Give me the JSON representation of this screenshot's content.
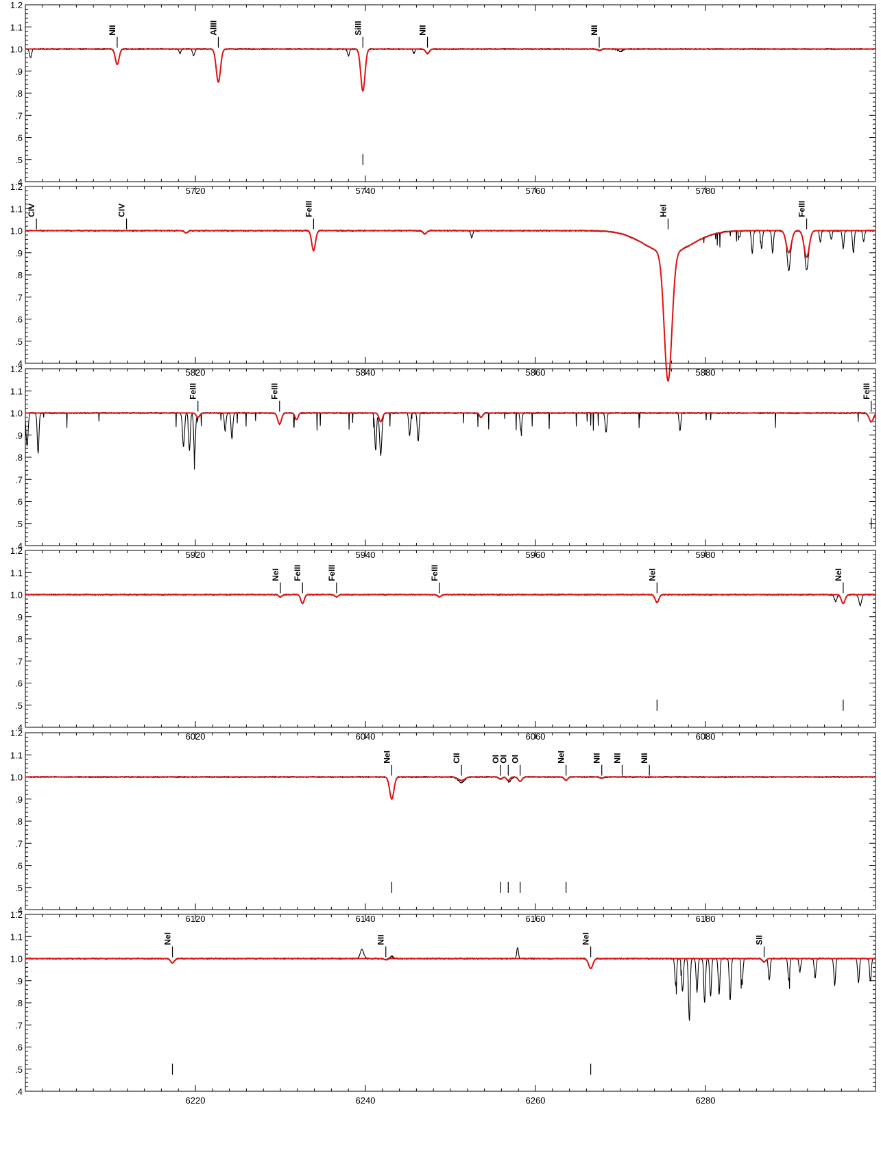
{
  "colors": {
    "observed": "#000000",
    "model": "#e01010",
    "axes": "#000000"
  },
  "chart_data": [
    {
      "type": "line",
      "xlim": [
        5700,
        5800
      ],
      "ylim": [
        0.4,
        1.2
      ],
      "xticks": [
        5720,
        5740,
        5760,
        5780
      ],
      "yticks": [
        0.4,
        0.5,
        0.6,
        0.7,
        0.8,
        0.9,
        1.0,
        1.1,
        1.2
      ],
      "ytick_labels": [
        ".4",
        ".5",
        ".6",
        ".7",
        ".8",
        ".9",
        "1.0",
        "1.1",
        "1.2"
      ],
      "line_ids": [
        {
          "x": 5710.8,
          "label": "NII"
        },
        {
          "x": 5722.7,
          "label": "AlIII"
        },
        {
          "x": 5739.7,
          "label": "SiIII"
        },
        {
          "x": 5747.3,
          "label": "NII"
        },
        {
          "x": 5767.5,
          "label": "NII"
        }
      ],
      "markers": [
        5739.7
      ],
      "model_lines": [
        {
          "x": 5710.8,
          "depth": 0.07,
          "width": 0.22
        },
        {
          "x": 5722.7,
          "depth": 0.15,
          "width": 0.25
        },
        {
          "x": 5739.7,
          "depth": 0.19,
          "width": 0.25
        },
        {
          "x": 5747.3,
          "depth": 0.02,
          "width": 0.22
        },
        {
          "x": 5767.5,
          "depth": 0.006,
          "width": 0.2
        }
      ],
      "extra_obs_lines": [
        {
          "x": 5700.6,
          "depth": 0.04,
          "width": 0.12
        },
        {
          "x": 5718.2,
          "depth": 0.02,
          "width": 0.1
        },
        {
          "x": 5719.8,
          "depth": 0.03,
          "width": 0.12
        },
        {
          "x": 5738.0,
          "depth": 0.03,
          "width": 0.12
        },
        {
          "x": 5745.7,
          "depth": 0.02,
          "width": 0.1
        },
        {
          "x": 5770.0,
          "depth": 0.01,
          "width": 0.3
        }
      ],
      "broad": []
    },
    {
      "type": "line",
      "xlim": [
        5800,
        5900
      ],
      "ylim": [
        0.4,
        1.2
      ],
      "xticks": [
        5820,
        5840,
        5860,
        5880
      ],
      "yticks": [
        0.4,
        0.5,
        0.6,
        0.7,
        0.8,
        0.9,
        1.0,
        1.1,
        1.2
      ],
      "ytick_labels": [
        ".4",
        ".5",
        ".6",
        ".7",
        ".8",
        ".9",
        "1.0",
        "1.1",
        "1.2"
      ],
      "line_ids": [
        {
          "x": 5801.3,
          "label": "CIV"
        },
        {
          "x": 5811.9,
          "label": "CIV"
        },
        {
          "x": 5833.9,
          "label": "FeIII"
        },
        {
          "x": 5875.6,
          "label": "HeI"
        },
        {
          "x": 5891.9,
          "label": "FeIII"
        }
      ],
      "markers": [],
      "model_lines": [
        {
          "x": 5818.9,
          "depth": 0.01,
          "width": 0.2
        },
        {
          "x": 5833.9,
          "depth": 0.09,
          "width": 0.22
        },
        {
          "x": 5847.0,
          "depth": 0.015,
          "width": 0.2
        },
        {
          "x": 5889.8,
          "depth": 0.1,
          "width": 0.3
        },
        {
          "x": 5891.9,
          "depth": 0.12,
          "width": 0.3
        }
      ],
      "extra_obs_lines": [
        {
          "x": 5852.5,
          "depth": 0.03,
          "width": 0.12
        },
        {
          "x": 5884.0,
          "depth": 0.03,
          "width": 0.1
        },
        {
          "x": 5885.5,
          "depth": 0.1,
          "width": 0.1
        },
        {
          "x": 5886.6,
          "depth": 0.08,
          "width": 0.1
        },
        {
          "x": 5887.9,
          "depth": 0.1,
          "width": 0.1
        },
        {
          "x": 5889.8,
          "depth": 0.08,
          "width": 0.15
        },
        {
          "x": 5891.9,
          "depth": 0.06,
          "width": 0.15
        },
        {
          "x": 5893.5,
          "depth": 0.05,
          "width": 0.1
        },
        {
          "x": 5894.8,
          "depth": 0.04,
          "width": 0.1
        },
        {
          "x": 5896.2,
          "depth": 0.08,
          "width": 0.1
        },
        {
          "x": 5897.4,
          "depth": 0.1,
          "width": 0.1
        },
        {
          "x": 5898.6,
          "depth": 0.05,
          "width": 0.1
        }
      ],
      "broad": [
        {
          "x": 5875.6,
          "depth": 0.58,
          "width": 0.45,
          "wing": 0.1,
          "wing_width": 2.8
        }
      ],
      "telluric_region": [
        5878,
        5900
      ]
    },
    {
      "type": "line",
      "xlim": [
        5900,
        6000
      ],
      "ylim": [
        0.4,
        1.2
      ],
      "xticks": [
        5920,
        5940,
        5960,
        5980
      ],
      "yticks": [
        0.4,
        0.5,
        0.6,
        0.7,
        0.8,
        0.9,
        1.0,
        1.1,
        1.2
      ],
      "ytick_labels": [
        ".4",
        ".5",
        ".6",
        ".7",
        ".8",
        ".9",
        "1.0",
        "1.1",
        "1.2"
      ],
      "line_ids": [
        {
          "x": 5920.3,
          "label": "FeIII"
        },
        {
          "x": 5929.9,
          "label": "FeIII"
        },
        {
          "x": 5999.5,
          "label": "FeIII"
        }
      ],
      "markers": [
        5999.5
      ],
      "model_lines": [
        {
          "x": 5920.3,
          "depth": 0.02,
          "width": 0.2
        },
        {
          "x": 5929.9,
          "depth": 0.05,
          "width": 0.22
        },
        {
          "x": 5931.9,
          "depth": 0.03,
          "width": 0.18
        },
        {
          "x": 5941.8,
          "depth": 0.04,
          "width": 0.2
        },
        {
          "x": 5953.6,
          "depth": 0.02,
          "width": 0.18
        },
        {
          "x": 5999.5,
          "depth": 0.04,
          "width": 0.25
        }
      ],
      "extra_obs_lines": [
        {
          "x": 5900.2,
          "depth": 0.15,
          "width": 0.12
        },
        {
          "x": 5901.5,
          "depth": 0.18,
          "width": 0.1
        },
        {
          "x": 5918.6,
          "depth": 0.15,
          "width": 0.12
        },
        {
          "x": 5919.3,
          "depth": 0.17,
          "width": 0.1
        },
        {
          "x": 5919.9,
          "depth": 0.19,
          "width": 0.1
        },
        {
          "x": 5923.5,
          "depth": 0.08,
          "width": 0.1
        },
        {
          "x": 5924.3,
          "depth": 0.12,
          "width": 0.1
        },
        {
          "x": 5941.2,
          "depth": 0.17,
          "width": 0.1
        },
        {
          "x": 5941.8,
          "depth": 0.15,
          "width": 0.12
        },
        {
          "x": 5945.2,
          "depth": 0.1,
          "width": 0.1
        },
        {
          "x": 5946.2,
          "depth": 0.13,
          "width": 0.1
        },
        {
          "x": 5958.3,
          "depth": 0.08,
          "width": 0.1
        },
        {
          "x": 5968.3,
          "depth": 0.09,
          "width": 0.1
        },
        {
          "x": 5977.0,
          "depth": 0.08,
          "width": 0.1
        }
      ],
      "broad": [],
      "telluric_region": [
        5900,
        6000
      ]
    },
    {
      "type": "line",
      "xlim": [
        6000,
        6100
      ],
      "ylim": [
        0.4,
        1.2
      ],
      "xticks": [
        6020,
        6040,
        6060,
        6080
      ],
      "yticks": [
        0.4,
        0.5,
        0.6,
        0.7,
        0.8,
        0.9,
        1.0,
        1.1,
        1.2
      ],
      "ytick_labels": [
        ".4",
        ".5",
        ".6",
        ".7",
        ".8",
        ".9",
        "1.0",
        "1.1",
        "1.2"
      ],
      "line_ids": [
        {
          "x": 6030.0,
          "label": "NeI"
        },
        {
          "x": 6032.6,
          "label": "FeIII"
        },
        {
          "x": 6036.6,
          "label": "FeIII"
        },
        {
          "x": 6048.7,
          "label": "FeIII"
        },
        {
          "x": 6074.3,
          "label": "NeI"
        },
        {
          "x": 6096.2,
          "label": "NeI"
        }
      ],
      "markers": [
        6074.3,
        6096.2
      ],
      "model_lines": [
        {
          "x": 6030.0,
          "depth": 0.01,
          "width": 0.2
        },
        {
          "x": 6032.6,
          "depth": 0.04,
          "width": 0.2
        },
        {
          "x": 6036.6,
          "depth": 0.01,
          "width": 0.2
        },
        {
          "x": 6048.7,
          "depth": 0.01,
          "width": 0.2
        },
        {
          "x": 6074.3,
          "depth": 0.035,
          "width": 0.22
        },
        {
          "x": 6096.2,
          "depth": 0.04,
          "width": 0.22
        }
      ],
      "extra_obs_lines": [
        {
          "x": 6095.3,
          "depth": 0.03,
          "width": 0.15
        },
        {
          "x": 6098.2,
          "depth": 0.05,
          "width": 0.15
        }
      ],
      "broad": []
    },
    {
      "type": "line",
      "xlim": [
        6100,
        6200
      ],
      "ylim": [
        0.4,
        1.2
      ],
      "xticks": [
        6120,
        6140,
        6160,
        6180
      ],
      "yticks": [
        0.4,
        0.5,
        0.6,
        0.7,
        0.8,
        0.9,
        1.0,
        1.1,
        1.2
      ],
      "ytick_labels": [
        ".4",
        ".5",
        ".6",
        ".7",
        ".8",
        ".9",
        "1.0",
        "1.1",
        "1.2"
      ],
      "line_ids": [
        {
          "x": 6143.1,
          "label": "NeI"
        },
        {
          "x": 6151.3,
          "label": "CII"
        },
        {
          "x": 6155.9,
          "label": "OI"
        },
        {
          "x": 6156.8,
          "label": "OI"
        },
        {
          "x": 6158.2,
          "label": "OI"
        },
        {
          "x": 6163.6,
          "label": "NeI"
        },
        {
          "x": 6167.8,
          "label": "NII"
        },
        {
          "x": 6170.2,
          "label": "NII"
        },
        {
          "x": 6173.4,
          "label": "NII"
        }
      ],
      "markers": [
        6143.1,
        6155.9,
        6156.8,
        6158.2,
        6163.6
      ],
      "model_lines": [
        {
          "x": 6143.1,
          "depth": 0.1,
          "width": 0.25
        },
        {
          "x": 6151.3,
          "depth": 0.015,
          "width": 0.4
        },
        {
          "x": 6155.9,
          "depth": 0.01,
          "width": 0.2
        },
        {
          "x": 6156.8,
          "depth": 0.015,
          "width": 0.2
        },
        {
          "x": 6158.2,
          "depth": 0.02,
          "width": 0.22
        },
        {
          "x": 6163.6,
          "depth": 0.015,
          "width": 0.2
        },
        {
          "x": 6167.8,
          "depth": 0.005,
          "width": 0.2
        }
      ],
      "extra_obs_lines": [
        {
          "x": 6151.3,
          "depth": 0.01,
          "width": 0.3
        },
        {
          "x": 6157.0,
          "depth": 0.01,
          "width": 0.2
        }
      ],
      "broad": []
    },
    {
      "type": "line",
      "xlim": [
        6200,
        6300
      ],
      "ylim": [
        0.4,
        1.2
      ],
      "xticks": [
        6220,
        6240,
        6260,
        6280
      ],
      "yticks": [
        0.4,
        0.5,
        0.6,
        0.7,
        0.8,
        0.9,
        1.0,
        1.1,
        1.2
      ],
      "ytick_labels": [
        ".4",
        ".5",
        ".6",
        ".7",
        ".8",
        ".9",
        "1.0",
        "1.1",
        "1.2"
      ],
      "line_ids": [
        {
          "x": 6217.3,
          "label": "NeI"
        },
        {
          "x": 6242.4,
          "label": "NII"
        },
        {
          "x": 6266.5,
          "label": "NeI"
        },
        {
          "x": 6286.9,
          "label": "SII"
        }
      ],
      "markers": [
        6217.3,
        6266.5
      ],
      "model_lines": [
        {
          "x": 6217.3,
          "depth": 0.02,
          "width": 0.22
        },
        {
          "x": 6242.4,
          "depth": 0.005,
          "width": 0.2
        },
        {
          "x": 6266.5,
          "depth": 0.045,
          "width": 0.25
        },
        {
          "x": 6286.9,
          "depth": 0.015,
          "width": 0.2
        }
      ],
      "extra_obs_lines": [
        {
          "x": 6239.6,
          "depth": -0.04,
          "width": 0.2
        },
        {
          "x": 6243.1,
          "depth": -0.01,
          "width": 0.15
        },
        {
          "x": 6257.9,
          "depth": -0.05,
          "width": 0.1
        },
        {
          "x": 6276.5,
          "depth": 0.12,
          "width": 0.1
        },
        {
          "x": 6277.3,
          "depth": 0.15,
          "width": 0.1
        },
        {
          "x": 6278.1,
          "depth": 0.28,
          "width": 0.1
        },
        {
          "x": 6279.0,
          "depth": 0.15,
          "width": 0.1
        },
        {
          "x": 6279.9,
          "depth": 0.2,
          "width": 0.1
        },
        {
          "x": 6280.6,
          "depth": 0.17,
          "width": 0.1
        },
        {
          "x": 6281.6,
          "depth": 0.16,
          "width": 0.1
        },
        {
          "x": 6282.9,
          "depth": 0.19,
          "width": 0.1
        },
        {
          "x": 6284.3,
          "depth": 0.12,
          "width": 0.1
        },
        {
          "x": 6287.5,
          "depth": 0.1,
          "width": 0.1
        },
        {
          "x": 6289.8,
          "depth": 0.1,
          "width": 0.1
        },
        {
          "x": 6291.1,
          "depth": 0.06,
          "width": 0.1
        },
        {
          "x": 6292.9,
          "depth": 0.09,
          "width": 0.1
        },
        {
          "x": 6295.2,
          "depth": 0.12,
          "width": 0.1
        },
        {
          "x": 6298.0,
          "depth": 0.11,
          "width": 0.1
        },
        {
          "x": 6299.4,
          "depth": 0.1,
          "width": 0.1
        }
      ],
      "broad": [],
      "telluric_region": [
        6275,
        6300
      ]
    }
  ]
}
